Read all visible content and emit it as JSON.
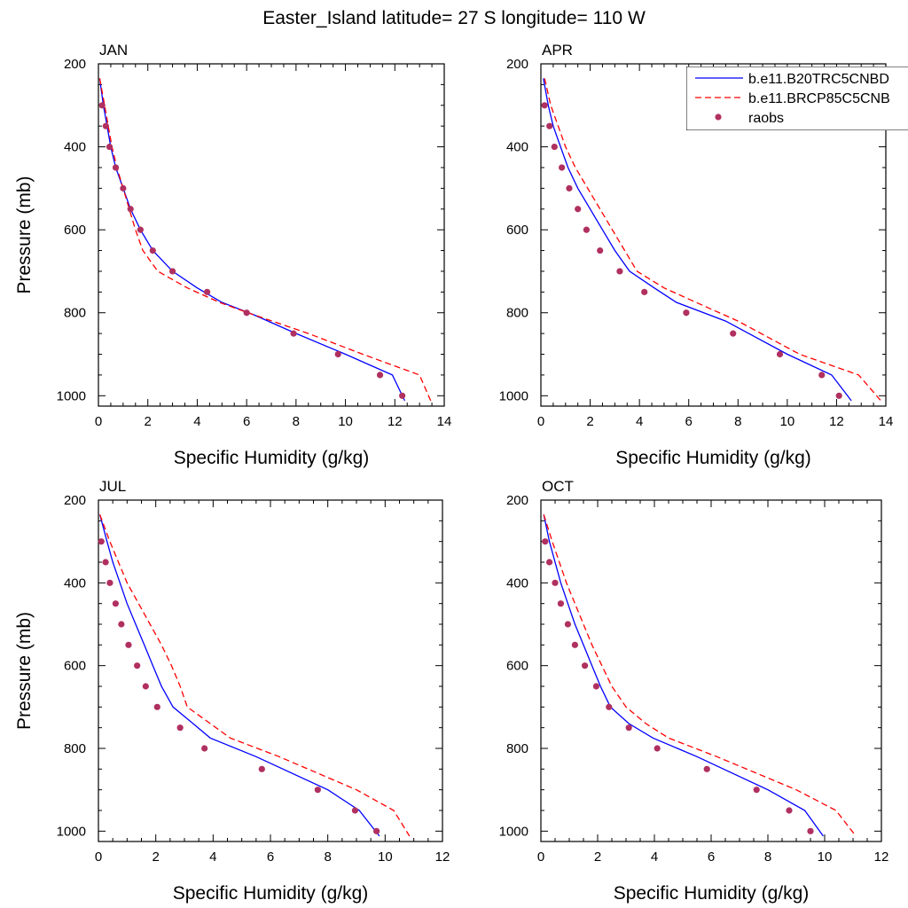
{
  "figure": {
    "title": "Easter_Island  latitude= 27 S longitude= 110 W"
  },
  "chart_data": [
    {
      "type": "line",
      "panel": "JAN",
      "xlabel": "Specific Humidity (g/kg)",
      "ylabel": "Pressure (mb)",
      "xlim": [
        0,
        14
      ],
      "ylim": [
        200,
        1025
      ],
      "y_inverted": true,
      "xticks": [
        0,
        2,
        4,
        6,
        8,
        10,
        12,
        14
      ],
      "yticks": [
        200,
        400,
        600,
        800,
        1000
      ],
      "series": [
        {
          "name": "b.e11.B20TRC5CNBD",
          "style": "solid",
          "color": "#0000ff",
          "points": [
            [
              0.05,
              235
            ],
            [
              0.2,
              300
            ],
            [
              0.35,
              350
            ],
            [
              0.5,
              400
            ],
            [
              0.7,
              450
            ],
            [
              1.0,
              500
            ],
            [
              1.3,
              550
            ],
            [
              1.7,
              600
            ],
            [
              2.2,
              650
            ],
            [
              3.0,
              700
            ],
            [
              4.0,
              740
            ],
            [
              5.0,
              775
            ],
            [
              6.3,
              805
            ],
            [
              8.0,
              850
            ],
            [
              10.0,
              900
            ],
            [
              11.9,
              950
            ],
            [
              12.4,
              1012
            ]
          ]
        },
        {
          "name": "b.e11.BRCP85C5CNB",
          "style": "dashed",
          "color": "#ff0000",
          "points": [
            [
              0.05,
              235
            ],
            [
              0.25,
              300
            ],
            [
              0.4,
              350
            ],
            [
              0.55,
              400
            ],
            [
              0.75,
              450
            ],
            [
              1.0,
              500
            ],
            [
              1.25,
              550
            ],
            [
              1.5,
              600
            ],
            [
              1.8,
              650
            ],
            [
              2.4,
              700
            ],
            [
              3.6,
              740
            ],
            [
              4.9,
              775
            ],
            [
              6.3,
              805
            ],
            [
              8.5,
              850
            ],
            [
              10.7,
              900
            ],
            [
              13.0,
              950
            ],
            [
              13.45,
              1012
            ]
          ]
        },
        {
          "name": "raobs",
          "style": "markers",
          "color": "#b03060",
          "points": [
            [
              0.15,
              300
            ],
            [
              0.3,
              350
            ],
            [
              0.45,
              400
            ],
            [
              0.7,
              450
            ],
            [
              1.0,
              500
            ],
            [
              1.3,
              550
            ],
            [
              1.7,
              600
            ],
            [
              2.2,
              650
            ],
            [
              3.0,
              700
            ],
            [
              4.4,
              750
            ],
            [
              6.0,
              800
            ],
            [
              7.9,
              850
            ],
            [
              9.7,
              900
            ],
            [
              11.4,
              950
            ],
            [
              12.3,
              1000
            ]
          ]
        }
      ]
    },
    {
      "type": "line",
      "panel": "APR",
      "xlabel": "Specific Humidity (g/kg)",
      "ylabel": "",
      "xlim": [
        0,
        14
      ],
      "ylim": [
        200,
        1025
      ],
      "y_inverted": true,
      "xticks": [
        0,
        2,
        4,
        6,
        8,
        10,
        12,
        14
      ],
      "yticks": [
        200,
        400,
        600,
        800,
        1000
      ],
      "series": [
        {
          "name": "b.e11.B20TRC5CNBD",
          "style": "solid",
          "color": "#0000ff",
          "points": [
            [
              0.1,
              235
            ],
            [
              0.3,
              300
            ],
            [
              0.5,
              350
            ],
            [
              0.8,
              400
            ],
            [
              1.1,
              450
            ],
            [
              1.5,
              500
            ],
            [
              2.0,
              550
            ],
            [
              2.5,
              600
            ],
            [
              3.0,
              650
            ],
            [
              3.6,
              700
            ],
            [
              4.6,
              740
            ],
            [
              5.5,
              775
            ],
            [
              7.5,
              820
            ],
            [
              10.0,
              900
            ],
            [
              11.8,
              950
            ],
            [
              12.6,
              1012
            ]
          ]
        },
        {
          "name": "b.e11.BRCP85C5CNB",
          "style": "dashed",
          "color": "#ff0000",
          "points": [
            [
              0.15,
              235
            ],
            [
              0.4,
              300
            ],
            [
              0.7,
              350
            ],
            [
              1.0,
              400
            ],
            [
              1.4,
              450
            ],
            [
              1.9,
              500
            ],
            [
              2.4,
              550
            ],
            [
              2.9,
              600
            ],
            [
              3.4,
              650
            ],
            [
              3.9,
              700
            ],
            [
              5.0,
              740
            ],
            [
              6.3,
              775
            ],
            [
              8.0,
              820
            ],
            [
              10.5,
              900
            ],
            [
              12.9,
              950
            ],
            [
              13.8,
              1012
            ]
          ]
        },
        {
          "name": "raobs",
          "style": "markers",
          "color": "#b03060",
          "points": [
            [
              0.15,
              300
            ],
            [
              0.35,
              350
            ],
            [
              0.55,
              400
            ],
            [
              0.85,
              450
            ],
            [
              1.15,
              500
            ],
            [
              1.5,
              550
            ],
            [
              1.85,
              600
            ],
            [
              2.4,
              650
            ],
            [
              3.2,
              700
            ],
            [
              4.2,
              750
            ],
            [
              5.9,
              800
            ],
            [
              7.8,
              850
            ],
            [
              9.7,
              900
            ],
            [
              11.4,
              950
            ],
            [
              12.1,
              1000
            ]
          ]
        }
      ]
    },
    {
      "type": "line",
      "panel": "JUL",
      "xlabel": "Specific Humidity (g/kg)",
      "ylabel": "Pressure (mb)",
      "xlim": [
        0,
        12
      ],
      "ylim": [
        200,
        1025
      ],
      "y_inverted": true,
      "xticks": [
        0,
        2,
        4,
        6,
        8,
        10,
        12
      ],
      "yticks": [
        200,
        400,
        600,
        800,
        1000
      ],
      "series": [
        {
          "name": "b.e11.B20TRC5CNBD",
          "style": "solid",
          "color": "#0000ff",
          "points": [
            [
              0.05,
              235
            ],
            [
              0.3,
              300
            ],
            [
              0.5,
              350
            ],
            [
              0.75,
              400
            ],
            [
              1.0,
              450
            ],
            [
              1.3,
              500
            ],
            [
              1.6,
              550
            ],
            [
              1.9,
              600
            ],
            [
              2.2,
              650
            ],
            [
              2.6,
              700
            ],
            [
              3.3,
              740
            ],
            [
              3.9,
              775
            ],
            [
              5.5,
              820
            ],
            [
              8.0,
              900
            ],
            [
              9.1,
              950
            ],
            [
              9.8,
              1012
            ]
          ]
        },
        {
          "name": "b.e11.BRCP85C5CNB",
          "style": "dashed",
          "color": "#ff0000",
          "points": [
            [
              0.05,
              235
            ],
            [
              0.4,
              300
            ],
            [
              0.7,
              350
            ],
            [
              1.0,
              400
            ],
            [
              1.4,
              450
            ],
            [
              1.8,
              500
            ],
            [
              2.2,
              550
            ],
            [
              2.55,
              600
            ],
            [
              2.85,
              650
            ],
            [
              3.1,
              700
            ],
            [
              3.9,
              740
            ],
            [
              4.6,
              775
            ],
            [
              6.3,
              820
            ],
            [
              9.0,
              900
            ],
            [
              10.3,
              950
            ],
            [
              10.85,
              1012
            ]
          ]
        },
        {
          "name": "raobs",
          "style": "markers",
          "color": "#b03060",
          "points": [
            [
              0.1,
              300
            ],
            [
              0.25,
              350
            ],
            [
              0.4,
              400
            ],
            [
              0.6,
              450
            ],
            [
              0.8,
              500
            ],
            [
              1.05,
              550
            ],
            [
              1.35,
              600
            ],
            [
              1.65,
              650
            ],
            [
              2.05,
              700
            ],
            [
              2.85,
              750
            ],
            [
              3.7,
              800
            ],
            [
              5.7,
              850
            ],
            [
              7.65,
              900
            ],
            [
              8.95,
              950
            ],
            [
              9.7,
              1000
            ]
          ]
        }
      ]
    },
    {
      "type": "line",
      "panel": "OCT",
      "xlabel": "Specific Humidity (g/kg)",
      "ylabel": "",
      "xlim": [
        0,
        12
      ],
      "ylim": [
        200,
        1025
      ],
      "y_inverted": true,
      "xticks": [
        0,
        2,
        4,
        6,
        8,
        10,
        12
      ],
      "yticks": [
        200,
        400,
        600,
        800,
        1000
      ],
      "series": [
        {
          "name": "b.e11.B20TRC5CNBD",
          "style": "solid",
          "color": "#0000ff",
          "points": [
            [
              0.1,
              235
            ],
            [
              0.3,
              300
            ],
            [
              0.5,
              350
            ],
            [
              0.7,
              400
            ],
            [
              0.95,
              450
            ],
            [
              1.2,
              500
            ],
            [
              1.5,
              550
            ],
            [
              1.8,
              600
            ],
            [
              2.1,
              650
            ],
            [
              2.45,
              700
            ],
            [
              3.1,
              740
            ],
            [
              3.95,
              775
            ],
            [
              5.5,
              820
            ],
            [
              8.0,
              900
            ],
            [
              9.3,
              950
            ],
            [
              9.95,
              1012
            ]
          ]
        },
        {
          "name": "b.e11.BRCP85C5CNB",
          "style": "dashed",
          "color": "#ff0000",
          "points": [
            [
              0.1,
              235
            ],
            [
              0.4,
              300
            ],
            [
              0.65,
              350
            ],
            [
              0.9,
              400
            ],
            [
              1.2,
              450
            ],
            [
              1.5,
              500
            ],
            [
              1.8,
              550
            ],
            [
              2.15,
              600
            ],
            [
              2.5,
              650
            ],
            [
              3.0,
              700
            ],
            [
              3.7,
              740
            ],
            [
              4.5,
              775
            ],
            [
              6.2,
              820
            ],
            [
              9.0,
              900
            ],
            [
              10.4,
              950
            ],
            [
              11.1,
              1012
            ]
          ]
        },
        {
          "name": "raobs",
          "style": "markers",
          "color": "#b03060",
          "points": [
            [
              0.15,
              300
            ],
            [
              0.3,
              350
            ],
            [
              0.5,
              400
            ],
            [
              0.7,
              450
            ],
            [
              0.95,
              500
            ],
            [
              1.2,
              550
            ],
            [
              1.55,
              600
            ],
            [
              1.95,
              650
            ],
            [
              2.4,
              700
            ],
            [
              3.1,
              750
            ],
            [
              4.1,
              800
            ],
            [
              5.85,
              850
            ],
            [
              7.6,
              900
            ],
            [
              8.75,
              950
            ],
            [
              9.5,
              1000
            ]
          ]
        }
      ]
    }
  ],
  "legend": {
    "placement": "top-right of APR panel",
    "entries": [
      {
        "label": "b.e11.B20TRC5CNBD",
        "style": "solid",
        "color": "#0000ff"
      },
      {
        "label": "b.e11.BRCP85C5CNB",
        "style": "dashed",
        "color": "#ff0000"
      },
      {
        "label": "raobs",
        "style": "markers",
        "color": "#b03060"
      }
    ]
  }
}
